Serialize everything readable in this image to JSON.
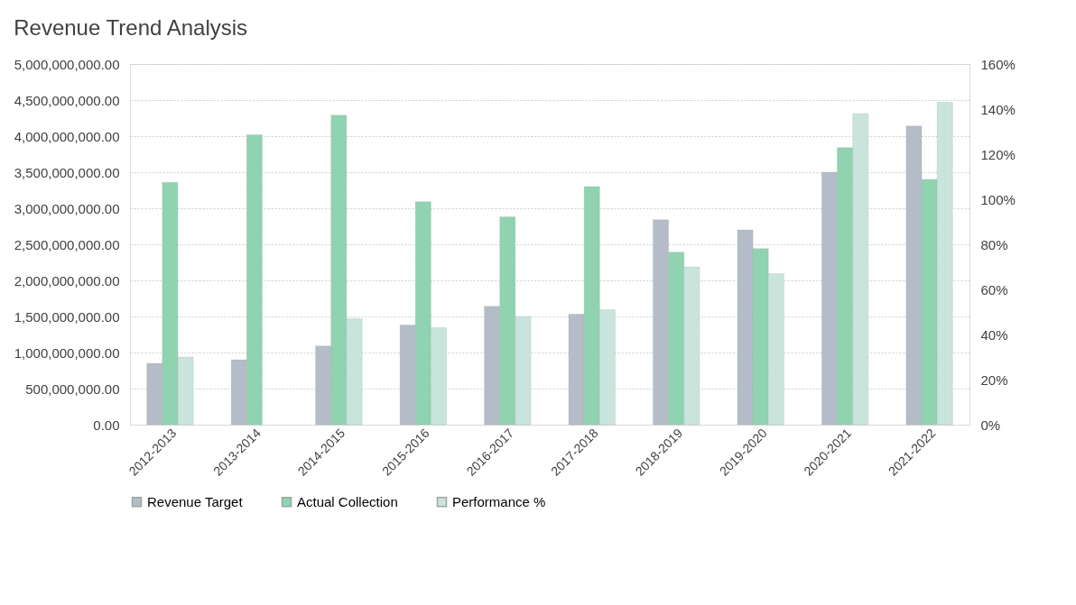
{
  "chart_data": {
    "type": "bar",
    "title": "Revenue Trend Analysis",
    "categories": [
      "2012-2013",
      "2013-2014",
      "2014-2015",
      "2015-2016",
      "2016-2017",
      "2017-2018",
      "2018-2019",
      "2019-2020",
      "2020-2021",
      "2021-2022"
    ],
    "series": [
      {
        "name": "Revenue Target",
        "color": "#b4bcc8",
        "values": [
          850000000,
          900000000,
          1090000000,
          1380000000,
          1640000000,
          1530000000,
          2840000000,
          2700000000,
          3500000000,
          4140000000
        ]
      },
      {
        "name": "Actual Collection",
        "color": "#8fd3b0",
        "values": [
          3360000000,
          4020000000,
          4290000000,
          3090000000,
          2880000000,
          3300000000,
          2390000000,
          2440000000,
          3840000000,
          3400000000
        ]
      },
      {
        "name": "Performance %",
        "color": "#c9e4dc",
        "axis": "y2",
        "values": [
          30,
          null,
          47,
          43,
          48,
          51,
          70,
          67,
          138,
          143
        ]
      }
    ],
    "ylim": [
      0,
      5000000000
    ],
    "yticks": [
      {
        "value": 0,
        "label": "0.00"
      },
      {
        "value": 500000000,
        "label": "500,000,000.00"
      },
      {
        "value": 1000000000,
        "label": "1,000,000,000.00"
      },
      {
        "value": 1500000000,
        "label": "1,500,000,000.00"
      },
      {
        "value": 2000000000,
        "label": "2,000,000,000.00"
      },
      {
        "value": 2500000000,
        "label": "2,500,000,000.00"
      },
      {
        "value": 3000000000,
        "label": "3,000,000,000.00"
      },
      {
        "value": 3500000000,
        "label": "3,500,000,000.00"
      },
      {
        "value": 4000000000,
        "label": "4,000,000,000.00"
      },
      {
        "value": 4500000000,
        "label": "4,500,000,000.00"
      },
      {
        "value": 5000000000,
        "label": "5,000,000,000.00"
      }
    ],
    "y2lim": [
      0,
      160
    ],
    "y2ticks": [
      {
        "value": 0,
        "label": "0%"
      },
      {
        "value": 20,
        "label": "20%"
      },
      {
        "value": 40,
        "label": "40%"
      },
      {
        "value": 60,
        "label": "60%"
      },
      {
        "value": 80,
        "label": "80%"
      },
      {
        "value": 100,
        "label": "100%"
      },
      {
        "value": 120,
        "label": "120%"
      },
      {
        "value": 140,
        "label": "140%"
      },
      {
        "value": 160,
        "label": "160%"
      }
    ],
    "grid": "y",
    "legend": "bottom"
  }
}
